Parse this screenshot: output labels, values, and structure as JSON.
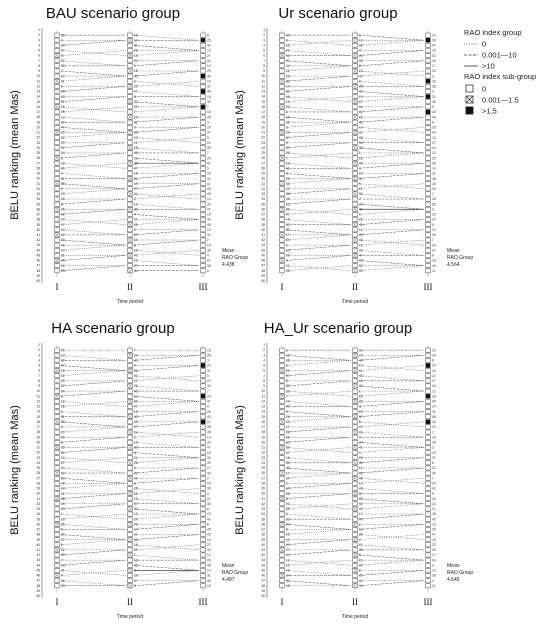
{
  "panels": [
    {
      "title": "BAU scenario group",
      "ylabel": "BELU ranking (mean Mas)",
      "xlabel": "Time period",
      "periods": [
        "I",
        "II",
        "III"
      ],
      "mean_label": "Mean",
      "rao_label": "RAO Group",
      "mean_value": "4.438",
      "filled_III": [
        3,
        10,
        13,
        16
      ]
    },
    {
      "title": "Ur scenario group",
      "ylabel": "BELU ranking (mean Mas)",
      "xlabel": "Time period",
      "periods": [
        "I",
        "II",
        "III"
      ],
      "mean_label": "Mean",
      "rao_label": "RAO Group",
      "mean_value": "4.564",
      "filled_III": [
        3,
        11,
        14,
        17
      ]
    },
    {
      "title": "HA scenario group",
      "ylabel": "BELU ranking (mean Mas)",
      "xlabel": "Time period",
      "periods": [
        "I",
        "II",
        "III"
      ],
      "mean_label": "Mean",
      "rao_label": "RAO Group",
      "mean_value": "4.487",
      "filled_III": [
        5,
        11,
        16
      ]
    },
    {
      "title": "HA_Ur scenario group",
      "ylabel": "BELU ranking (mean Mas)",
      "xlabel": "Time period",
      "periods": [
        "I",
        "II",
        "III"
      ],
      "mean_label": "Mean",
      "rao_label": "RAO Group",
      "mean_value": "4.645",
      "filled_III": [
        5,
        11,
        16
      ]
    }
  ],
  "legend": {
    "group_title": "RAO index group",
    "group_items": [
      "0",
      "0.001—10",
      ">10"
    ],
    "sub_title": "RAO index sub-group",
    "sub_items": [
      "0",
      "0.001—1.5",
      ">1.5"
    ]
  },
  "ranks": {
    "min": 1,
    "max": 50
  }
}
